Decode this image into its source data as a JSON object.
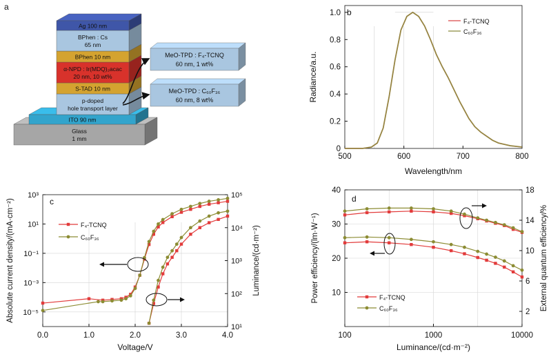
{
  "panel_a": {
    "label": "a",
    "layers": [
      {
        "name": "ag",
        "line1": "Ag 100 nm",
        "line2": "",
        "color": "#3f56a8"
      },
      {
        "name": "bphen-cs",
        "line1": "BPhen : Cs",
        "line2": "65 nm",
        "color": "#a9c6e0"
      },
      {
        "name": "bphen",
        "line1": "BPhen 10 nm",
        "line2": "",
        "color": "#d4a330"
      },
      {
        "name": "emitter",
        "line1": "α-NPD : Ir(MDQ)₂acac",
        "line2": "20 nm, 10 wt%",
        "color": "#d8322b"
      },
      {
        "name": "stad",
        "line1": "S-TAD 10 nm",
        "line2": "",
        "color": "#d4a330"
      },
      {
        "name": "htl",
        "line1": "p-doped",
        "line2": "hole transport layer",
        "color": "#a9c6e0"
      },
      {
        "name": "ito",
        "line1": "ITO 90 nm",
        "line2": "",
        "color": "#32a4cc"
      },
      {
        "name": "glass",
        "line1": "Glass",
        "line2": "1 mm",
        "color": "#a6a6a6"
      }
    ],
    "callouts": [
      {
        "line1": "MeO-TPD : F₄-TCNQ",
        "line2": "60 nm, 1 wt%"
      },
      {
        "line1": "MeO-TPD : C₆₀F₃₆",
        "line2": "60 nm, 8 wt%"
      }
    ],
    "colors": {
      "callout_fill": "#a9c6e0",
      "arrow": "#111111"
    }
  },
  "chart_data": [
    {
      "panel": "b",
      "type": "line",
      "xlabel": "Wavelength/nm",
      "ylabel": "Radiance/a.u.",
      "xlim": [
        500,
        800
      ],
      "ylim": [
        0,
        1.05
      ],
      "xticks": [
        500,
        600,
        700,
        800
      ],
      "yticks": [
        0,
        0.2,
        0.4,
        0.6,
        0.8,
        1.0
      ],
      "ytick_labels": [
        "0",
        "0.2",
        "0.4",
        "0.6",
        "0.8",
        "1.0"
      ],
      "legend_position": "top-right",
      "series": [
        {
          "name": "F₄-TCNQ",
          "color": "#d94848",
          "x": [
            500,
            530,
            545,
            555,
            565,
            575,
            585,
            595,
            605,
            615,
            625,
            635,
            645,
            655,
            665,
            675,
            685,
            695,
            700,
            710,
            720,
            730,
            740,
            750,
            760,
            770,
            780,
            790,
            800
          ],
          "y": [
            0,
            0,
            0.01,
            0.04,
            0.15,
            0.38,
            0.65,
            0.87,
            0.97,
            1.0,
            0.97,
            0.9,
            0.8,
            0.69,
            0.6,
            0.52,
            0.43,
            0.34,
            0.3,
            0.22,
            0.16,
            0.12,
            0.09,
            0.06,
            0.04,
            0.03,
            0.02,
            0.015,
            0.01
          ]
        },
        {
          "name": "C₆₀F₃₆",
          "color": "#8a8a3c",
          "x": [
            500,
            530,
            545,
            555,
            565,
            575,
            585,
            595,
            605,
            615,
            625,
            635,
            645,
            655,
            665,
            675,
            685,
            695,
            700,
            710,
            720,
            730,
            740,
            750,
            760,
            770,
            780,
            790,
            800
          ],
          "y": [
            0,
            0,
            0.01,
            0.04,
            0.15,
            0.38,
            0.65,
            0.87,
            0.97,
            1.0,
            0.97,
            0.9,
            0.8,
            0.69,
            0.6,
            0.52,
            0.43,
            0.34,
            0.3,
            0.22,
            0.16,
            0.12,
            0.09,
            0.06,
            0.04,
            0.03,
            0.02,
            0.015,
            0.01
          ]
        }
      ]
    },
    {
      "panel": "c",
      "type": "line",
      "xlabel": "Voltage/V",
      "ylabel": "Absolute current density/(mA·cm⁻²)",
      "ylabel_right": "Luminance/(cd·m⁻²)",
      "xlim": [
        0,
        4
      ],
      "ylim_log": [
        -6,
        3
      ],
      "ylim_right_log": [
        1,
        5
      ],
      "xticks": [
        0,
        1,
        2,
        3,
        4
      ],
      "xtick_labels": [
        "0.0",
        "1.0",
        "2.0",
        "3.0",
        "4.0"
      ],
      "yticks_log": [
        3,
        1,
        -1,
        -3,
        -5
      ],
      "ytick_labels": [
        "10³",
        "10¹",
        "10⁻¹",
        "10⁻³",
        "10⁻⁵"
      ],
      "yticks_right_log": [
        5,
        4,
        3,
        2,
        1
      ],
      "ytick_right_labels": [
        "10⁵",
        "10⁴",
        "10³",
        "10²",
        "10¹"
      ],
      "legend_position": "top-left",
      "series": [
        {
          "name": "F₄-TCNQ",
          "color": "#e23b3b",
          "marker": "square",
          "axis": "left",
          "x": [
            0,
            1.0,
            1.3,
            1.5,
            1.7,
            1.8,
            1.9,
            2.0,
            2.1,
            2.2,
            2.3,
            2.4,
            2.5,
            2.6,
            2.8,
            3.0,
            3.2,
            3.4,
            3.6,
            3.8,
            4.0
          ],
          "log_y": [
            -4.4,
            -4.1,
            -4.2,
            -4.15,
            -4.1,
            -4.0,
            -3.8,
            -3.3,
            -2.5,
            -1.4,
            -0.4,
            0.3,
            0.8,
            1.1,
            1.5,
            1.8,
            2.0,
            2.2,
            2.35,
            2.45,
            2.55
          ]
        },
        {
          "name": "C₆₀F₃₆",
          "color": "#8c8c33",
          "marker": "circle",
          "axis": "left",
          "x": [
            0,
            1.2,
            1.3,
            1.5,
            1.7,
            1.8,
            1.9,
            2.0,
            2.1,
            2.2,
            2.3,
            2.4,
            2.5,
            2.6,
            2.8,
            3.0,
            3.2,
            3.4,
            3.6,
            3.8,
            4.0
          ],
          "log_y": [
            -4.9,
            -4.3,
            -4.3,
            -4.25,
            -4.2,
            -4.1,
            -3.9,
            -3.4,
            -2.5,
            -1.3,
            -0.2,
            0.5,
            1.0,
            1.3,
            1.7,
            2.0,
            2.2,
            2.4,
            2.55,
            2.65,
            2.75
          ]
        },
        {
          "name": "F₄-TCNQ luminance",
          "color": "#e23b3b",
          "marker": "square",
          "axis": "right",
          "x": [
            2.3,
            2.4,
            2.5,
            2.6,
            2.7,
            2.8,
            2.9,
            3.0,
            3.2,
            3.4,
            3.6,
            3.8,
            4.0
          ],
          "log_y": [
            1.1,
            1.7,
            2.2,
            2.6,
            2.9,
            3.1,
            3.3,
            3.5,
            3.8,
            4.0,
            4.15,
            4.25,
            4.35
          ]
        },
        {
          "name": "C₆₀F₃₆ luminance",
          "color": "#8c8c33",
          "marker": "circle",
          "axis": "right",
          "x": [
            2.3,
            2.4,
            2.5,
            2.6,
            2.7,
            2.8,
            2.9,
            3.0,
            3.2,
            3.4,
            3.6,
            3.8,
            4.0
          ],
          "log_y": [
            1.1,
            1.8,
            2.4,
            2.8,
            3.1,
            3.3,
            3.5,
            3.7,
            4.0,
            4.2,
            4.35,
            4.45,
            4.5
          ]
        }
      ]
    },
    {
      "panel": "d",
      "type": "line",
      "xlabel": "Luminance/(cd·m⁻²)",
      "ylabel": "Power efficiency/(lm·W⁻¹)",
      "ylabel_right": "External quantum efficiency/%",
      "xlim_log": [
        2,
        4
      ],
      "ylim": [
        0,
        40
      ],
      "ylim_right": [
        0,
        18
      ],
      "xticks_log": [
        2,
        3,
        4
      ],
      "xtick_labels": [
        "100",
        "1000",
        "10000"
      ],
      "yticks": [
        10,
        20,
        30,
        40
      ],
      "yticks_right": [
        2,
        6,
        10,
        14,
        18
      ],
      "legend_position": "bottom-left",
      "series": [
        {
          "name": "F₄-TCNQ",
          "color": "#e23b3b",
          "marker": "square",
          "axis": "left",
          "log_x": [
            2.0,
            2.25,
            2.5,
            2.75,
            3.0,
            3.2,
            3.35,
            3.5,
            3.6,
            3.7,
            3.8,
            3.9,
            4.0
          ],
          "y": [
            24.5,
            24.8,
            24.5,
            24.0,
            23.2,
            22.2,
            21.3,
            20.2,
            19.4,
            18.5,
            17.4,
            16.0,
            14.5
          ]
        },
        {
          "name": "C₆₀F₃₆",
          "color": "#8c8c33",
          "marker": "circle",
          "axis": "left",
          "log_x": [
            2.0,
            2.25,
            2.5,
            2.75,
            3.0,
            3.2,
            3.35,
            3.5,
            3.6,
            3.7,
            3.8,
            3.9,
            4.0
          ],
          "y": [
            26.0,
            26.2,
            26.0,
            25.5,
            24.8,
            24.0,
            23.2,
            22.0,
            21.2,
            20.3,
            19.2,
            17.8,
            16.5
          ]
        },
        {
          "name": "F₄-TCNQ EQE",
          "color": "#e23b3b",
          "marker": "square",
          "axis": "right",
          "log_x": [
            2.0,
            2.25,
            2.5,
            2.75,
            3.0,
            3.2,
            3.35,
            3.5,
            3.6,
            3.7,
            3.8,
            3.9,
            4.0
          ],
          "y": [
            14.7,
            15.0,
            15.1,
            15.2,
            15.1,
            14.9,
            14.6,
            14.2,
            13.9,
            13.6,
            13.3,
            12.8,
            12.4
          ]
        },
        {
          "name": "C₆₀F₃₆ EQE",
          "color": "#8c8c33",
          "marker": "circle",
          "axis": "right",
          "log_x": [
            2.0,
            2.25,
            2.5,
            2.75,
            3.0,
            3.2,
            3.35,
            3.5,
            3.6,
            3.7,
            3.8,
            3.9,
            4.0
          ],
          "y": [
            15.2,
            15.5,
            15.6,
            15.6,
            15.5,
            15.2,
            14.8,
            14.3,
            14.0,
            13.7,
            13.4,
            13.0,
            12.5
          ]
        }
      ]
    }
  ]
}
